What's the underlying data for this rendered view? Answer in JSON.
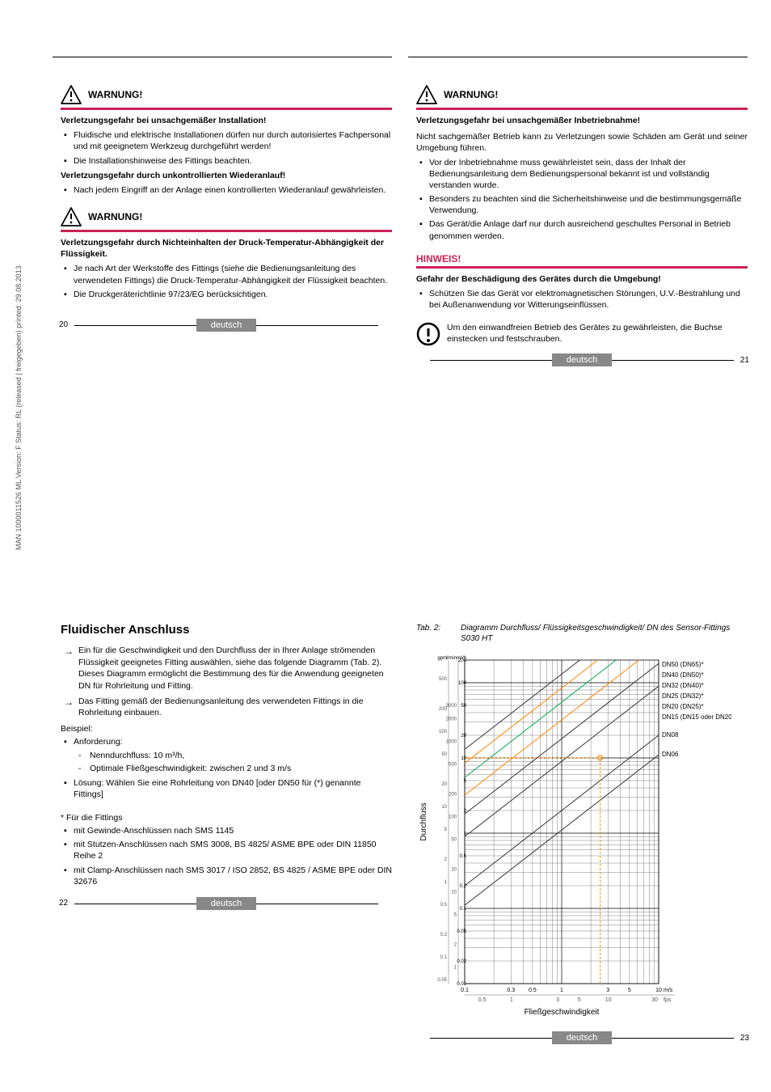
{
  "sideText": "MAN 1000011526 ML Version: F  Status: RL (released | freigegeben)  printed: 29.08.2013",
  "langBadge": "deutsch",
  "pages": {
    "tl": "20",
    "tr": "21",
    "bl": "22",
    "br": "23"
  },
  "tl": {
    "warn1": {
      "title": "WARNUNG!",
      "bold1": "Verletzungsgefahr bei unsachgemäßer Installation!",
      "b1": "Fluidische und elektrische Installationen dürfen nur durch autorisiertes Fachpersonal und mit geeignetem Werkzeug durchgeführt werden!",
      "b2": "Die Installationshinweise des Fittings beachten.",
      "bold2": "Verletzungsgefahr durch unkontrollierten Wiederanlauf!",
      "b3": "Nach jedem Eingriff an der Anlage einen kontrollierten Wiederanlauf gewährleisten."
    },
    "warn2": {
      "title": "WARNUNG!",
      "bold1": "Verletzungsgefahr durch Nichteinhalten der Druck-Temperatur-Abhängigkeit der Flüssigkeit.",
      "b1": "Je nach Art der Werkstoffe des Fittings (siehe die Bedienungsanleitung des verwendeten Fittings) die Druck-Temperatur-Abhängigkeit der Flüssigkeit beachten.",
      "b2": "Die Druckgeräterichtlinie 97/23/EG berücksichtigen."
    }
  },
  "tr": {
    "warn1": {
      "title": "WARNUNG!",
      "bold1": "Verletzungsgefahr bei unsachgemäßer Inbetriebnahme!",
      "p1": "Nicht sachgemäßer Betrieb kann zu Verletzungen sowie Schäden am Gerät und seiner Umgebung führen.",
      "b1": "Vor der Inbetriebnahme muss gewährleistet sein, dass der Inhalt der Bedienungsanleitung dem Bedienungspersonal bekannt ist und vollständig verstanden wurde.",
      "b2": "Besonders zu beachten sind die Sicherheitshinweise und die bestimmungsgemäße Verwendung.",
      "b3": "Das Gerät/die Anlage darf nur durch ausreichend geschultes Personal in Betrieb genommen werden."
    },
    "hinweis": {
      "title": "HINWEIS!",
      "bold1": "Gefahr der Beschädigung des Gerätes durch die Umgebung!",
      "b1": "Schützen Sie das Gerät vor elektromagnetischen Störungen, U.V.-Bestrahlung und bei Außenanwendung vor Witterungseinflüssen."
    },
    "info": "Um den einwandfreien Betrieb des Gerätes zu gewährleisten, die Buchse einstecken und festschrauben."
  },
  "bl": {
    "heading": "Fluidischer Anschluss",
    "a1": "Ein für die Geschwindigkeit und den Durchfluss der in Ihrer Anlage strömenden Flüssigkeit geeignetes Fitting auswählen, siehe das folgende Diagramm (Tab. 2). Dieses Diagramm ermöglicht die Bestimmung des für die Anwendung geeigneten DN für Rohrleitung und Fitting.",
    "a2": "Das Fitting gemäß der Bedienungsanleitung des verwendeten Fittings in die Rohrleitung einbauen.",
    "beispiel": "Beispiel:",
    "anf": "Anforderung:",
    "d1": "Nenndurchfluss: 10 m³/h,",
    "d2": "Optimale Fließgeschwindigkeit: zwischen 2 und 3 m/s",
    "loes": "Lösung: Wählen Sie eine Rohrleitung von DN40 [oder DN50 für (*) genannte Fittings]",
    "star": "* Für die Fittings",
    "f1": "mit Gewinde-Anschlüssen nach SMS 1145",
    "f2": "mit Stutzen-Anschlüssen nach SMS 3008, BS 4825/ ASME BPE oder DIN 11850 Reihe 2",
    "f3": "mit Clamp-Anschlüssen nach SMS 3017 / ISO 2852, BS 4825 / ASME BPE oder DIN 32676"
  },
  "br": {
    "tabLabel": "Tab. 2:",
    "tabCaption": "Diagramm Durchfluss/ Flüssigkeitsgeschwindigkeit/ DN des Sensor-Fittings S030 HT",
    "chart": {
      "xLabel": "Fließgeschwindigkeit",
      "yLabel": "Durchfluss",
      "xUnitTop": "m/s",
      "xUnitBot": "fps",
      "yUnits": {
        "gpm": "gpm",
        "lmin": "l/min",
        "m3h": "m³/h"
      },
      "xTicksMs": [
        "0.1",
        "0.3",
        "0.5",
        "1",
        "3",
        "5",
        "10"
      ],
      "xTicksFps": [
        "0.3",
        "0.5",
        "1",
        "3",
        "5",
        "10",
        "30"
      ],
      "yTicksGpm": [
        "0.05",
        "0.1",
        "0.2",
        "0.5",
        "1",
        "2",
        "5",
        "10",
        "20",
        "50",
        "100",
        "200",
        "500",
        "1000"
      ],
      "yTicksLmin": [
        "0.2",
        "0.5",
        "1",
        "2",
        "5",
        "10",
        "20",
        "50",
        "100",
        "200",
        "500",
        "1000",
        "2000",
        "3000"
      ],
      "yTicksM3h": [
        "0.01",
        "0.02",
        "0.05",
        "0.1",
        "0.2",
        "0.5",
        "1",
        "2",
        "5",
        "10",
        "20",
        "50",
        "100",
        "200"
      ],
      "seriesLabels": [
        "DN50 (DN65)*",
        "DN40 (DN50)*",
        "DN32 (DN40)*",
        "DN25 (DN32)*",
        "DN20 (DN25)*",
        "DN15 (DN15 oder DN20)*",
        "DN08",
        "DN06"
      ],
      "seriesLabelColors": [
        "#000",
        "#000",
        "#000",
        "#000",
        "#000",
        "#000",
        "#000",
        "#000"
      ],
      "lineColors": [
        "#333",
        "#ff8800",
        "#00aa55",
        "#ff8800",
        "#333",
        "#333",
        "#333",
        "#333"
      ],
      "bgColor": "#ffffff",
      "plotLeft": 60,
      "plotRight": 300,
      "plotTop": 10,
      "plotBottom": 410,
      "xMin_ms": 0.1,
      "xMax_ms": 10,
      "yMin_m3h": 0.01,
      "yMax_m3h": 200,
      "gpmScaleX": 40,
      "lminScaleX": 52,
      "m3hScaleX": 64,
      "seriesIntercepts_m3h_at_1ms": [
        130,
        85,
        55,
        32,
        18,
        9,
        2.0,
        1.1
      ],
      "seriesSlopeExponent": 1.0,
      "example_ms": 2.5,
      "example_m3h": 10,
      "exampleColor": "#ff8800"
    }
  },
  "colors": {
    "accent": "#cc2255",
    "grey": "#888888"
  }
}
